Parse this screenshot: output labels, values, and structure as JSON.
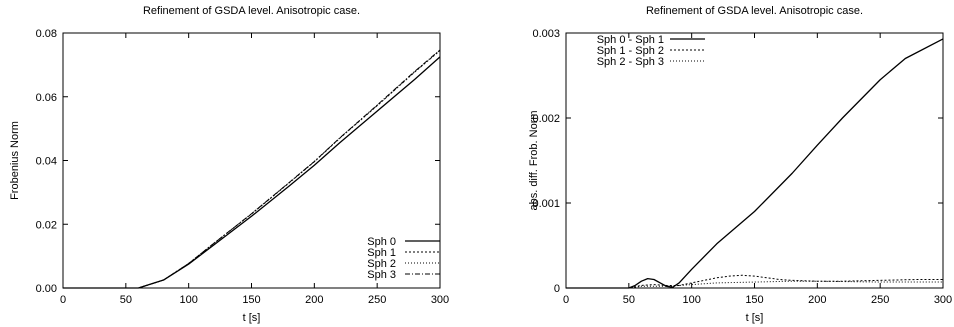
{
  "chart_data": [
    {
      "type": "line",
      "title": "Refinement of GSDA level. Anisotropic case.",
      "xlabel": "t [s]",
      "ylabel": "Frobenius Norm",
      "xlim": [
        0,
        300
      ],
      "ylim": [
        0,
        0.08
      ],
      "xticks": [
        "0",
        "50",
        "100",
        "150",
        "200",
        "250",
        "300"
      ],
      "yticks": [
        "0.00",
        "0.02",
        "0.04",
        "0.06",
        "0.08"
      ],
      "legend_position": "bottom-right",
      "grid": false,
      "series": [
        {
          "name": "Sph 0",
          "dash": "solid",
          "x": [
            0,
            50,
            60,
            80,
            100,
            120,
            150,
            180,
            200,
            220,
            250,
            280,
            300
          ],
          "y": [
            0,
            0,
            0,
            0.0025,
            0.0075,
            0.0135,
            0.0225,
            0.032,
            0.0385,
            0.0455,
            0.0555,
            0.0655,
            0.0725
          ]
        },
        {
          "name": "Sph 1",
          "dash": "dotted",
          "x": [
            0,
            50,
            60,
            80,
            100,
            120,
            150,
            180,
            200,
            220,
            250,
            280,
            300
          ],
          "y": [
            0,
            0,
            0,
            0.0025,
            0.0077,
            0.014,
            0.0232,
            0.033,
            0.0396,
            0.0469,
            0.0572,
            0.0678,
            0.0745
          ]
        },
        {
          "name": "Sph 2",
          "dash": "finedot",
          "x": [
            0,
            50,
            60,
            80,
            100,
            120,
            150,
            180,
            200,
            220,
            250,
            280,
            300
          ],
          "y": [
            0,
            0,
            0,
            0.0025,
            0.0077,
            0.014,
            0.0233,
            0.0331,
            0.0397,
            0.047,
            0.0573,
            0.0679,
            0.0746
          ]
        },
        {
          "name": "Sph 3",
          "dash": "dashdot",
          "x": [
            0,
            50,
            60,
            80,
            100,
            120,
            150,
            180,
            200,
            220,
            250,
            280,
            300
          ],
          "y": [
            0,
            0,
            0,
            0.0025,
            0.0077,
            0.014,
            0.0233,
            0.0331,
            0.0397,
            0.047,
            0.0574,
            0.068,
            0.0747
          ]
        }
      ]
    },
    {
      "type": "line",
      "title": "Refinement of GSDA level. Anisotropic case.",
      "xlabel": "t [s]",
      "ylabel": "abs. diff. Frob. Norm",
      "xlim": [
        0,
        300
      ],
      "ylim": [
        0,
        0.003
      ],
      "xticks": [
        "0",
        "50",
        "100",
        "150",
        "200",
        "250",
        "300"
      ],
      "yticks": [
        "0",
        "0.001",
        "0.002",
        "0.003"
      ],
      "legend_position": "top-left",
      "grid": false,
      "series": [
        {
          "name": "Sph 0 - Sph 1",
          "dash": "solid",
          "x": [
            0,
            50,
            55,
            60,
            65,
            70,
            75,
            80,
            85,
            90,
            100,
            120,
            150,
            180,
            200,
            220,
            250,
            270,
            300
          ],
          "y": [
            0,
            0,
            3e-05,
            8e-05,
            0.00011,
            0.0001,
            6e-05,
            2e-05,
            1e-05,
            6e-05,
            0.00022,
            0.00052,
            0.0009,
            0.00135,
            0.00168,
            0.002,
            0.00245,
            0.0027,
            0.00293
          ]
        },
        {
          "name": "Sph 1 - Sph 2",
          "dash": "dotted",
          "x": [
            0,
            50,
            60,
            70,
            80,
            90,
            100,
            110,
            120,
            130,
            140,
            150,
            160,
            170,
            180,
            200,
            220,
            250,
            280,
            300
          ],
          "y": [
            0,
            0,
            3e-05,
            4e-05,
            3e-05,
            3e-05,
            6e-05,
            9e-05,
            0.00012,
            0.00014,
            0.00015,
            0.00014,
            0.00012,
            0.0001,
            9e-05,
            8e-05,
            8e-05,
            9e-05,
            0.0001,
            0.0001
          ]
        },
        {
          "name": "Sph 2 - Sph 3",
          "dash": "finedot",
          "x": [
            0,
            50,
            60,
            70,
            80,
            90,
            100,
            120,
            150,
            180,
            200,
            250,
            300
          ],
          "y": [
            0,
            0,
            2e-05,
            2e-05,
            2e-05,
            3e-05,
            4e-05,
            6e-05,
            7e-05,
            8e-05,
            8e-05,
            7e-05,
            7e-05
          ]
        }
      ]
    }
  ]
}
